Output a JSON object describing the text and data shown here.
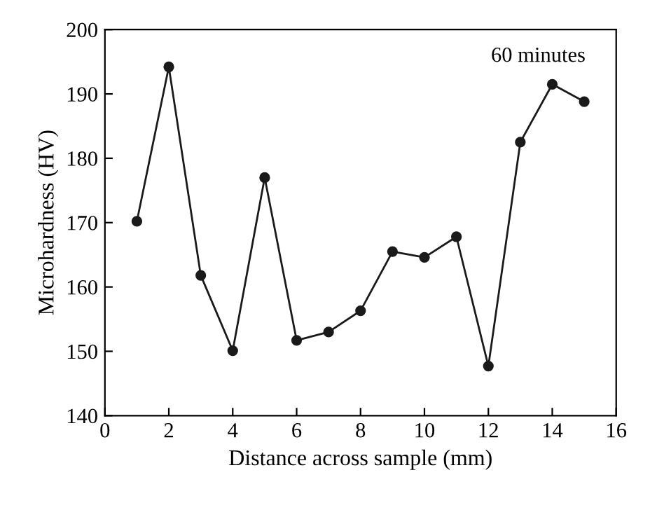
{
  "chart_data": {
    "type": "line",
    "xlabel": "Distance across sample (mm)",
    "ylabel": "Microhardness (HV)",
    "annotations": [
      "60 minutes"
    ],
    "x": [
      1,
      2,
      3,
      4,
      5,
      6,
      7,
      8,
      9,
      10,
      11,
      12,
      13,
      14,
      15
    ],
    "series": [
      {
        "color": "#1a1a1a",
        "values": [
          170.2,
          194.2,
          161.8,
          150.1,
          177.0,
          151.7,
          153.0,
          156.3,
          165.5,
          164.6,
          167.8,
          147.7,
          182.5,
          191.5,
          188.8
        ]
      }
    ],
    "xlim": [
      0,
      16
    ],
    "xticks": [
      0,
      2,
      4,
      6,
      8,
      10,
      12,
      14,
      16
    ],
    "ylim": [
      140,
      200
    ],
    "yticks": [
      140,
      150,
      160,
      170,
      180,
      190,
      200
    ],
    "marker": "circle",
    "line_style": "solid",
    "grid": false,
    "legend": false
  }
}
